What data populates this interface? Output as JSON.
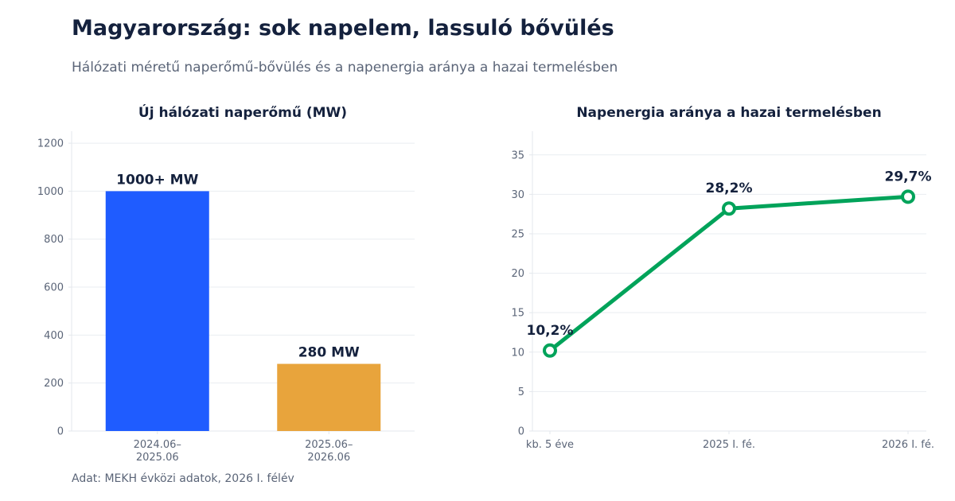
{
  "header": {
    "title": "Magyarország: sok napelem, lassuló bővülés",
    "subtitle": "Hálózati méretű naperőmű-bővülés és a napenergia aránya a hazai termelésben",
    "source": "Adat: MEKH évközi adatok, 2026 I. félév"
  },
  "chart_data": [
    {
      "type": "bar",
      "title": "Új hálózati naperőmű (MW)",
      "categories": [
        [
          "2024.06–",
          "2025.06"
        ],
        [
          "2025.06–",
          "2026.06"
        ]
      ],
      "values": [
        1000,
        280
      ],
      "data_labels": [
        "1000+ MW",
        "280 MW"
      ],
      "colors": [
        "#1f5cff",
        "#e8a43c"
      ],
      "ylim": [
        0,
        1250
      ],
      "yticks": [
        0,
        200,
        400,
        600,
        800,
        1000,
        1200
      ],
      "grid": true
    },
    {
      "type": "line",
      "title": "Napenergia aránya a hazai termelésben",
      "x": [
        "kb. 5 éve",
        "2025 I. fé.",
        "2026 I. fé."
      ],
      "values": [
        10.2,
        28.2,
        29.7
      ],
      "data_labels": [
        "10,2%",
        "28,2%",
        "29,7%"
      ],
      "color": "#00a35a",
      "ylim": [
        0,
        38
      ],
      "yticks": [
        0,
        5,
        10,
        15,
        20,
        25,
        30,
        35
      ],
      "grid": true
    }
  ]
}
